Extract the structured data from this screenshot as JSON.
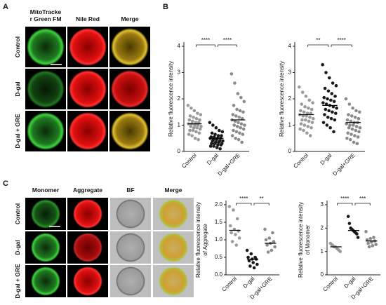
{
  "panel_labels": [
    "A",
    "B",
    "C"
  ],
  "panel_a": {
    "columns": [
      [
        "MitoTracke",
        "r Green FM"
      ],
      [
        "Nile Red"
      ],
      [
        "Merge"
      ]
    ],
    "rows": [
      "Control",
      "D-gal",
      "D-gal + GRE"
    ]
  },
  "panel_c": {
    "columns": [
      "Monomer",
      "Aggregate",
      "BF",
      "Merge"
    ],
    "rows": [
      "Control",
      "D-gal",
      "D-gal + GRE"
    ]
  },
  "chart_data": [
    {
      "type": "scatter",
      "ylabel": [
        "Relative fluorescence intensity"
      ],
      "categories": [
        "Control",
        "D-gal",
        "D-gal+GRE"
      ],
      "colors": [
        "#9a9a9a",
        "#1a1a1a",
        "#8a8a8a"
      ],
      "values": [
        [
          1.75,
          1.65,
          1.55,
          1.45,
          1.4,
          1.35,
          1.3,
          1.25,
          1.2,
          1.2,
          1.15,
          1.1,
          1.1,
          1.05,
          1.05,
          1.0,
          1.0,
          0.95,
          0.95,
          0.9,
          0.9,
          0.85,
          0.8,
          0.8,
          0.75,
          0.7,
          0.65,
          0.6,
          0.5,
          0.45
        ],
        [
          1.1,
          1.0,
          0.9,
          0.8,
          0.75,
          0.7,
          0.65,
          0.6,
          0.6,
          0.55,
          0.55,
          0.5,
          0.5,
          0.5,
          0.45,
          0.45,
          0.4,
          0.4,
          0.4,
          0.35,
          0.35,
          0.3,
          0.3,
          0.3,
          0.25,
          0.25,
          0.2,
          0.2,
          0.15,
          0.1
        ],
        [
          2.95,
          2.6,
          2.2,
          2.05,
          1.9,
          1.75,
          1.6,
          1.55,
          1.5,
          1.4,
          1.35,
          1.3,
          1.25,
          1.2,
          1.15,
          1.1,
          1.05,
          1.0,
          1.0,
          0.95,
          0.9,
          0.85,
          0.8,
          0.75,
          0.7,
          0.65,
          0.6,
          0.5,
          0.45,
          0.35
        ]
      ],
      "means": [
        1.05,
        0.5,
        1.2
      ],
      "ylim": [
        0,
        4
      ],
      "yticks": [
        0,
        1,
        2,
        3,
        4
      ],
      "significance": [
        "****",
        "****"
      ]
    },
    {
      "type": "scatter",
      "ylabel": [
        "Relative fluorescence intensity"
      ],
      "categories": [
        "Control",
        "D-gal",
        "D-gal+GRE"
      ],
      "colors": [
        "#9a9a9a",
        "#1a1a1a",
        "#8a8a8a"
      ],
      "values": [
        [
          2.45,
          2.25,
          2.1,
          1.95,
          1.85,
          1.8,
          1.7,
          1.65,
          1.6,
          1.55,
          1.5,
          1.45,
          1.45,
          1.4,
          1.35,
          1.35,
          1.3,
          1.25,
          1.2,
          1.2,
          1.15,
          1.1,
          1.05,
          1.0,
          0.95,
          0.9,
          0.85,
          0.8,
          0.7,
          0.6
        ],
        [
          3.3,
          3.0,
          2.8,
          2.6,
          2.5,
          2.4,
          2.3,
          2.2,
          2.1,
          2.05,
          2.0,
          1.95,
          1.9,
          1.85,
          1.8,
          1.75,
          1.7,
          1.65,
          1.6,
          1.55,
          1.5,
          1.45,
          1.4,
          1.3,
          1.25,
          1.2,
          1.1,
          1.0,
          0.9,
          0.75
        ],
        [
          2.0,
          1.8,
          1.65,
          1.55,
          1.5,
          1.4,
          1.35,
          1.3,
          1.25,
          1.2,
          1.15,
          1.1,
          1.1,
          1.05,
          1.0,
          1.0,
          0.95,
          0.9,
          0.9,
          0.85,
          0.8,
          0.75,
          0.7,
          0.65,
          0.6,
          0.55,
          0.5,
          0.45,
          0.35,
          0.3
        ]
      ],
      "means": [
        1.4,
        1.75,
        1.1
      ],
      "ylim": [
        0,
        4
      ],
      "yticks": [
        0,
        1,
        2,
        3,
        4
      ],
      "significance": [
        "**",
        "****"
      ]
    },
    {
      "type": "scatter",
      "ylabel": [
        "Relative fluorescence intensity",
        "of Aggregate"
      ],
      "categories": [
        "Control",
        "D-gal",
        "D-gal+GRE"
      ],
      "colors": [
        "#9a9a9a",
        "#1a1a1a",
        "#8a8a8a"
      ],
      "values": [
        [
          1.95,
          1.85,
          1.6,
          1.4,
          1.3,
          1.25,
          1.2,
          1.15,
          1.05,
          0.95,
          0.85
        ],
        [
          0.7,
          0.6,
          0.5,
          0.5,
          0.45,
          0.45,
          0.4,
          0.35,
          0.3,
          0.25,
          0.2
        ],
        [
          1.3,
          1.2,
          1.05,
          1.0,
          0.95,
          0.9,
          0.85,
          0.8,
          0.7,
          0.65
        ]
      ],
      "means": [
        1.27,
        0.44,
        0.9
      ],
      "ylim": [
        0,
        2
      ],
      "yticks": [
        {
          "value": 0,
          "label": "0.0"
        },
        {
          "value": 0.5,
          "label": "0.5"
        },
        {
          "value": 1,
          "label": "1.0"
        },
        {
          "value": 1.5,
          "label": "1.5"
        },
        {
          "value": 2,
          "label": "2.0"
        }
      ],
      "significance": [
        "****",
        "**"
      ]
    },
    {
      "type": "scatter",
      "ylabel": [
        "Relative fluorescence intensity",
        "of Monomer"
      ],
      "categories": [
        "Control",
        "D-gal",
        "D-gal+GRE"
      ],
      "colors": [
        "#9a9a9a",
        "#1a1a1a",
        "#8a8a8a"
      ],
      "values": [
        [
          1.35,
          1.3,
          1.25,
          1.2,
          1.2,
          1.15,
          1.1,
          1.05,
          1.0
        ],
        [
          2.5,
          2.2,
          2.0,
          1.95,
          1.9,
          1.85,
          1.8,
          1.75,
          1.6
        ],
        [
          1.85,
          1.6,
          1.55,
          1.5,
          1.45,
          1.4,
          1.35,
          1.3,
          1.25,
          1.2
        ]
      ],
      "means": [
        1.2,
        1.9,
        1.45
      ],
      "ylim": [
        0,
        3
      ],
      "yticks": [
        0,
        1,
        2,
        3
      ],
      "significance": [
        "****",
        "***"
      ]
    }
  ]
}
